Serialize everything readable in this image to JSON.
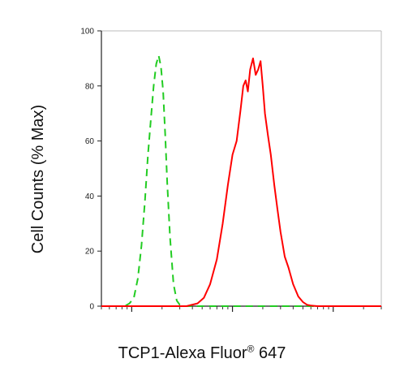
{
  "chart_data": {
    "type": "line",
    "title": "",
    "ylabel": "Cell Counts (% Max)",
    "xlabel": {
      "main": "TCP1-Alexa Fluor",
      "sup": "®",
      "tail": " 647"
    },
    "ylim": [
      0,
      100
    ],
    "yticks": [
      "0",
      "20",
      "40",
      "60",
      "80",
      "100"
    ],
    "xscale": "log",
    "xlim": [
      0.5,
      300
    ],
    "grid": false,
    "legend": "none",
    "series": [
      {
        "color": "#22cc22",
        "dash": true,
        "x": [
          0.5,
          0.85,
          0.95,
          1.05,
          1.15,
          1.25,
          1.35,
          1.45,
          1.55,
          1.65,
          1.75,
          1.85,
          1.95,
          2.05,
          2.15,
          2.25,
          2.4,
          2.6,
          2.8,
          3.0,
          3.3,
          3.6,
          4.0,
          5,
          10,
          30,
          100,
          300
        ],
        "values": [
          0,
          0,
          1,
          3,
          10,
          22,
          38,
          55,
          68,
          80,
          88,
          91,
          87,
          78,
          62,
          45,
          25,
          8,
          2,
          0.5,
          0,
          0,
          0,
          0,
          0,
          0,
          0,
          0
        ]
      },
      {
        "color": "#ff0000",
        "dash": false,
        "x": [
          0.5,
          3.5,
          4.5,
          5.2,
          6.0,
          7.0,
          8.0,
          9.0,
          10.0,
          11.0,
          12.0,
          12.8,
          13.5,
          14.2,
          15.0,
          16.0,
          17.0,
          18.0,
          19.0,
          20.0,
          21.0,
          22.5,
          24.0,
          26.0,
          28.0,
          30.0,
          33.0,
          36.0,
          40.0,
          45.0,
          50.0,
          55.0,
          60.0,
          70.0,
          300
        ],
        "values": [
          0,
          0,
          1,
          3,
          8,
          17,
          30,
          44,
          55,
          60,
          71,
          80,
          82,
          78,
          86,
          90,
          84,
          86,
          89,
          80,
          70,
          62,
          55,
          44,
          35,
          27,
          18,
          14,
          8,
          3.5,
          1.5,
          0.5,
          0.2,
          0,
          0
        ]
      }
    ]
  }
}
